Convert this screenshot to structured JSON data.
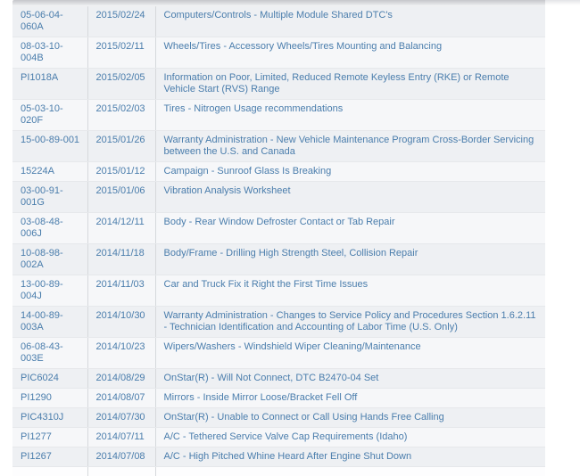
{
  "colors": {
    "link_blue": "#4a7dac",
    "row_odd_bg": "#eef0f3",
    "row_even_bg": "#f6f7f9",
    "column_divider": "#d6d9dc",
    "row_divider": "#e6e8eb",
    "top_shadow": "#c6c7cb",
    "page_bg": "#ffffff"
  },
  "table": {
    "columns": [
      "bulletin_number",
      "date",
      "description"
    ],
    "rows": [
      {
        "number": "05-06-04-060A",
        "date": "2015/02/24",
        "description": "Computers/Controls - Multiple Module Shared DTC's"
      },
      {
        "number": "08-03-10-004B",
        "date": "2015/02/11",
        "description": "Wheels/Tires - Accessory Wheels/Tires Mounting and Balancing"
      },
      {
        "number": "PI1018A",
        "date": "2015/02/05",
        "description": "Information on Poor, Limited, Reduced Remote Keyless Entry (RKE) or Remote Vehicle Start (RVS) Range"
      },
      {
        "number": "05-03-10-020F",
        "date": "2015/02/03",
        "description": "Tires - Nitrogen Usage recommendations"
      },
      {
        "number": "15-00-89-001",
        "date": "2015/01/26",
        "description": "Warranty Administration - New Vehicle Maintenance Program Cross-Border Servicing between the U.S. and Canada"
      },
      {
        "number": "15224A",
        "date": "2015/01/12",
        "description": "Campaign - Sunroof Glass Is Breaking"
      },
      {
        "number": "03-00-91-001G",
        "date": "2015/01/06",
        "description": "Vibration Analysis Worksheet"
      },
      {
        "number": "03-08-48-006J",
        "date": "2014/12/11",
        "description": "Body - Rear Window Defroster Contact or Tab Repair"
      },
      {
        "number": "10-08-98-002A",
        "date": "2014/11/18",
        "description": "Body/Frame - Drilling High Strength Steel, Collision Repair"
      },
      {
        "number": "13-00-89-004J",
        "date": "2014/11/03",
        "description": "Car and Truck Fix it Right the First Time Issues"
      },
      {
        "number": "14-00-89-003A",
        "date": "2014/10/30",
        "description": "Warranty Administration - Changes to Service Policy and Procedures Section 1.6.2.11 - Technician Identification and Accounting of Labor Time (U.S. Only)"
      },
      {
        "number": "06-08-43-003E",
        "date": "2014/10/23",
        "description": "Wipers/Washers - Windshield Wiper Cleaning/Maintenance"
      },
      {
        "number": "PIC6024",
        "date": "2014/08/29",
        "description": "OnStar(R) - Will Not Connect, DTC B2470-04 Set"
      },
      {
        "number": "PI1290",
        "date": "2014/08/07",
        "description": "Mirrors - Inside Mirror Loose/Bracket Fell Off"
      },
      {
        "number": "PIC4310J",
        "date": "2014/07/30",
        "description": "OnStar(R) - Unable to Connect or Call Using Hands Free Calling"
      },
      {
        "number": "PI1277",
        "date": "2014/07/11",
        "description": "A/C - Tethered Service Valve Cap Requirements (Idaho)"
      },
      {
        "number": "PI1267",
        "date": "2014/07/08",
        "description": "A/C - High Pitched Whine Heard After Engine Shut Down"
      }
    ]
  }
}
